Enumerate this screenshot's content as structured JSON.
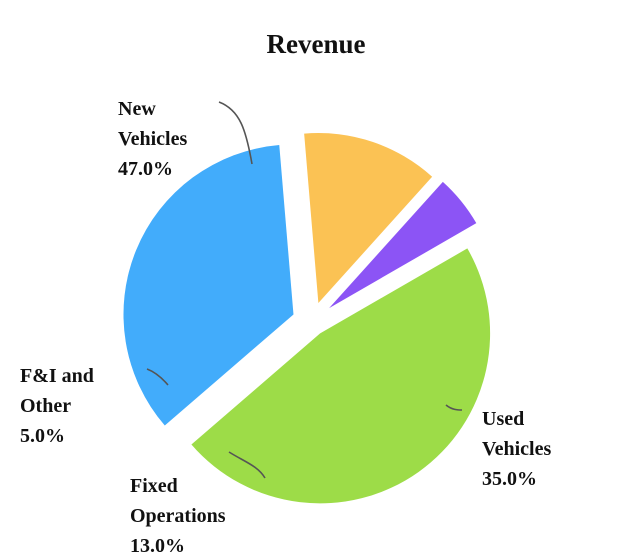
{
  "chart_data": {
    "type": "pie",
    "title": "Revenue",
    "slices": [
      {
        "category": "New Vehicles",
        "label_lines": [
          "New",
          "Vehicles",
          "47.0%"
        ],
        "value": 47.0,
        "color": "#9ddc48"
      },
      {
        "category": "Used Vehicles",
        "label_lines": [
          "Used",
          "Vehicles",
          "35.0%"
        ],
        "value": 35.0,
        "color": "#42acfb"
      },
      {
        "category": "Fixed Operations",
        "label_lines": [
          "Fixed",
          "Operations",
          "13.0%"
        ],
        "value": 13.0,
        "color": "#fbc254"
      },
      {
        "category": "F&I and Other",
        "label_lines": [
          "F&I and",
          "Other",
          "5.0%"
        ],
        "value": 5.0,
        "color": "#8c54f5"
      }
    ],
    "legend": "none",
    "exploded": true
  }
}
